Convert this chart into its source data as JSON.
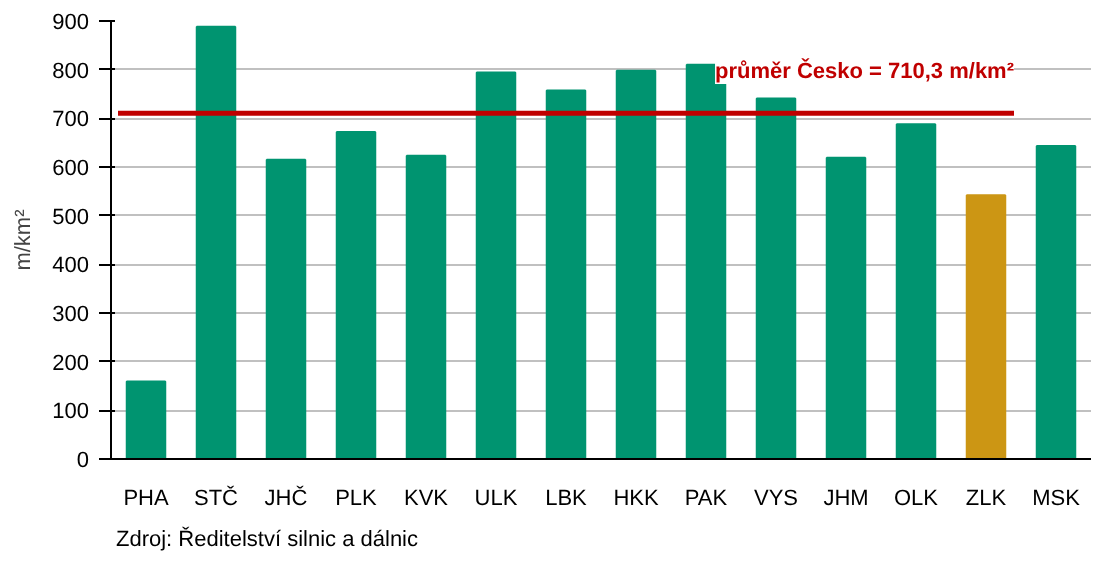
{
  "chart_data": {
    "type": "bar",
    "ylabel": "m/km²",
    "categories": [
      "PHA",
      "STČ",
      "JHČ",
      "PLK",
      "KVK",
      "ULK",
      "LBK",
      "HKK",
      "PAK",
      "VYS",
      "JHM",
      "OLK",
      "ZLK",
      "MSK"
    ],
    "values": [
      159,
      888,
      615,
      672,
      623,
      794,
      757,
      798,
      810,
      741,
      619,
      688,
      542,
      643
    ],
    "colors": [
      "#009470",
      "#009470",
      "#009470",
      "#009470",
      "#009470",
      "#009470",
      "#009470",
      "#009470",
      "#009470",
      "#009470",
      "#009470",
      "#009470",
      "#cc9614",
      "#009470"
    ],
    "ylim": [
      0,
      900
    ],
    "yticks": [
      0,
      100,
      200,
      300,
      400,
      500,
      600,
      700,
      800,
      900
    ],
    "grid": "y",
    "ref_lines": [
      {
        "axis": "y",
        "value": 710.3,
        "label": "průměr Česko = 710,3 m/km²",
        "color": "#c00000"
      }
    ],
    "annotations": [
      "Zdroj: Ředitelství silnic a dálnic"
    ]
  }
}
